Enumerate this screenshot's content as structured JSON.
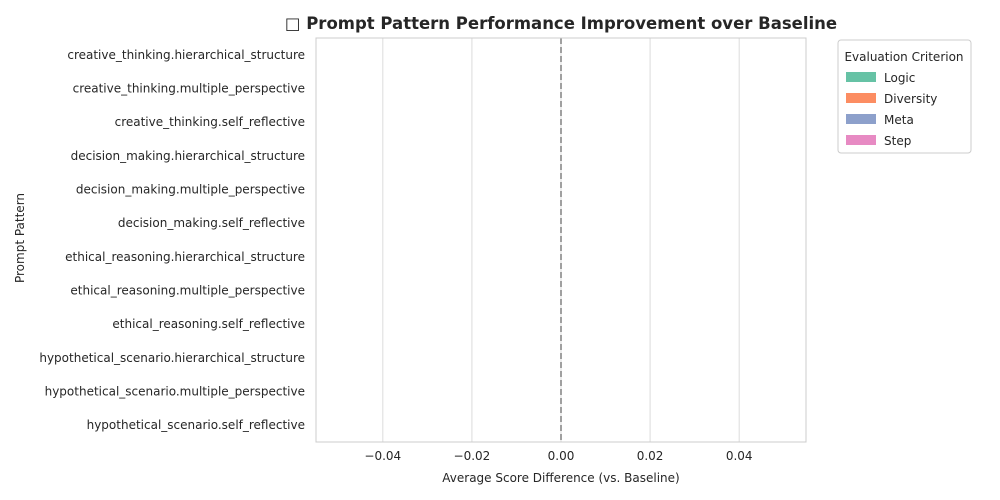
{
  "chart_data": {
    "type": "bar",
    "orientation": "horizontal",
    "title": "□ Prompt Pattern Performance Improvement over Baseline",
    "xlabel": "Average Score Difference (vs. Baseline)",
    "ylabel": "Prompt Pattern",
    "categories": [
      "creative_thinking.hierarchical_structure",
      "creative_thinking.multiple_perspective",
      "creative_thinking.self_reflective",
      "decision_making.hierarchical_structure",
      "decision_making.multiple_perspective",
      "decision_making.self_reflective",
      "ethical_reasoning.hierarchical_structure",
      "ethical_reasoning.multiple_perspective",
      "ethical_reasoning.self_reflective",
      "hypothetical_scenario.hierarchical_structure",
      "hypothetical_scenario.multiple_perspective",
      "hypothetical_scenario.self_reflective"
    ],
    "series": [
      {
        "name": "Logic",
        "color": "#66c2a5",
        "values": [
          0,
          0,
          0,
          0,
          0,
          0,
          0,
          0,
          0,
          0,
          0,
          0
        ]
      },
      {
        "name": "Diversity",
        "color": "#fc8d62",
        "values": [
          0,
          0,
          0,
          0,
          0,
          0,
          0,
          0,
          0,
          0,
          0,
          0
        ]
      },
      {
        "name": "Meta",
        "color": "#8da0cb",
        "values": [
          0,
          0,
          0,
          0,
          0,
          0,
          0,
          0,
          0,
          0,
          0,
          0
        ]
      },
      {
        "name": "Step",
        "color": "#e78ac3",
        "values": [
          0,
          0,
          0,
          0,
          0,
          0,
          0,
          0,
          0,
          0,
          0,
          0
        ]
      }
    ],
    "xlim": [
      -0.055,
      0.055
    ],
    "xticks": [
      -0.04,
      -0.02,
      0.0,
      0.02,
      0.04
    ],
    "xtick_labels": [
      "−0.04",
      "−0.02",
      "0.00",
      "0.02",
      "0.04"
    ],
    "reference_line": 0.0,
    "grid": "vertical",
    "legend": {
      "title": "Evaluation Criterion",
      "placement": "outside-top-right"
    }
  }
}
